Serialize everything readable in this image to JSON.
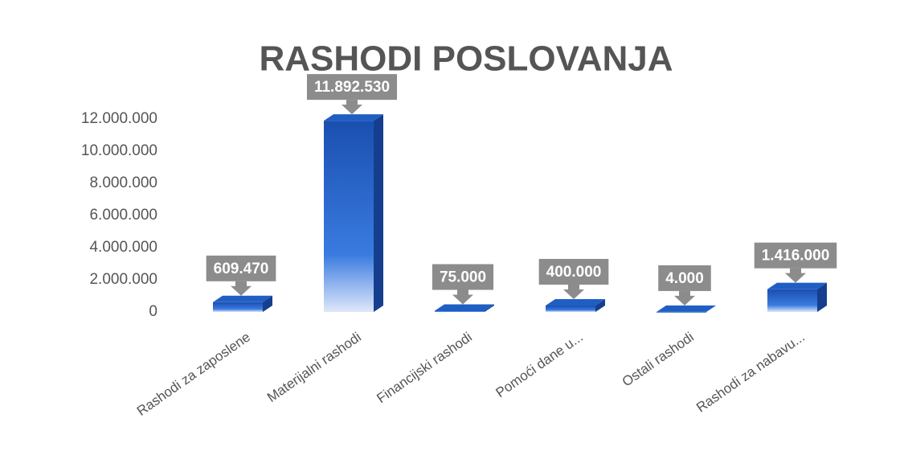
{
  "chart_data": {
    "type": "bar",
    "title": "RASHODI POSLOVANJA",
    "categories": [
      "Rashodi za zaposlene",
      "Materijalni rashodi",
      "Financijski rashodi",
      "Pomoći dane u...",
      "Ostali rashodi",
      "Rashodi za nabavu..."
    ],
    "values": [
      609470,
      11892530,
      75000,
      400000,
      4000,
      1416000
    ],
    "value_labels": [
      "609.470",
      "11.892.530",
      "75.000",
      "400.000",
      "4.000",
      "1.416.000"
    ],
    "color": "#1f5fc4",
    "ylim": [
      0,
      12000000
    ],
    "yticks": [
      0,
      {
        "value": 2000000,
        "label": "2.000.000"
      },
      {
        "value": 4000000,
        "label": "4.000.000"
      },
      {
        "value": 6000000,
        "label": "6.000.000"
      },
      {
        "value": 8000000,
        "label": "8.000.000"
      },
      {
        "value": 10000000,
        "label": "10.000.000"
      },
      {
        "value": 12000000,
        "label": "12.000.000"
      }
    ],
    "grid": false
  }
}
